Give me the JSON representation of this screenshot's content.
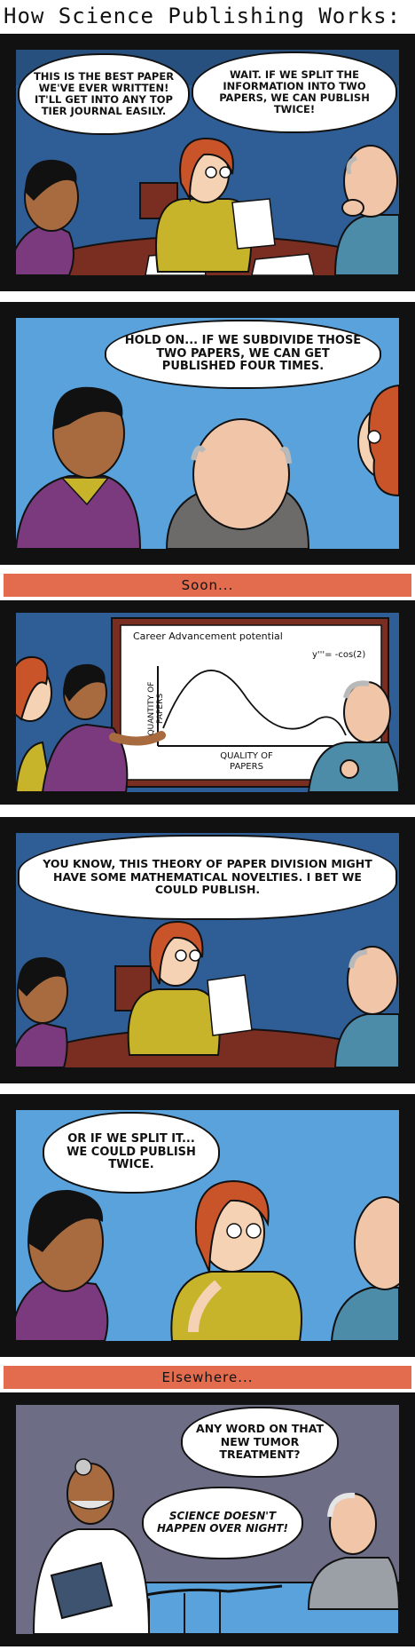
{
  "title": "How Science Publishing Works:",
  "panels": [
    {
      "bubbles": [
        "This is the best paper we've ever written! It'll get into any top tier journal easily.",
        "Wait. If we split the information into two papers, we can publish twice!"
      ]
    },
    {
      "bubbles": [
        "Hold on... If we subdivide those two papers, we can get published four times."
      ]
    },
    {
      "caption": "Soon...",
      "chart": {
        "title": "Career Advancement potential",
        "ylabel": "Quantity of papers",
        "xlabel": "Quality of papers",
        "equation": "y'''= -cos(2)"
      }
    },
    {
      "bubbles": [
        "You know, this theory of paper division might have some mathematical novelties. I bet we could publish."
      ]
    },
    {
      "bubbles": [
        "Or if we split it... We could publish twice."
      ]
    },
    {
      "caption": "Elsewhere...",
      "bubbles": [
        "Any word on that new tumor treatment?",
        "Science doesn't happen over night!"
      ]
    }
  ],
  "colors": {
    "frame": "#111111",
    "caption": "#e36b4e",
    "wall_blue": "#2f5d96",
    "sky_blue": "#5aa2dc",
    "table": "#7a2e22",
    "hospital": "#6e6d86"
  }
}
